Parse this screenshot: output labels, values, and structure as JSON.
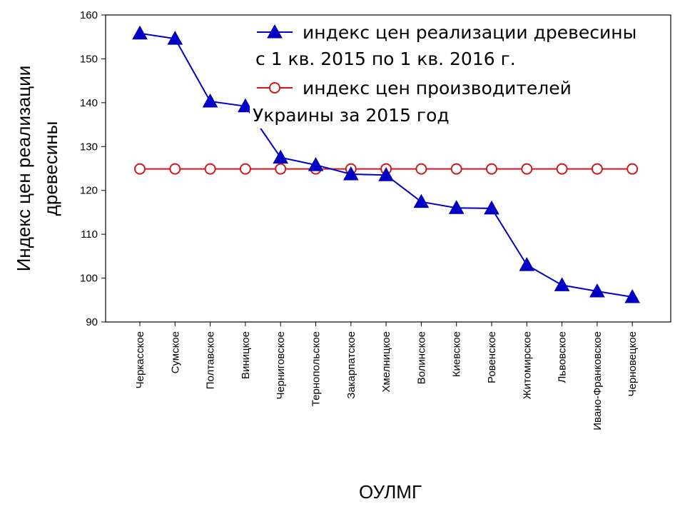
{
  "chart_data": {
    "type": "line",
    "categories": [
      "Черкасское",
      "Сумское",
      "Полтавское",
      "Виницкое",
      "Черниговское",
      "Тернопольское",
      "Закарпатское",
      "Хмелницкое",
      "Волинское",
      "Киевское",
      "Ровенское",
      "Житомирское",
      "Львовское",
      "Ивано-Франковское",
      "Черновецкое"
    ],
    "series": [
      {
        "name": "индекс цен реализации древесины",
        "name_line2": "с 1 кв. 2015 по  1 кв. 2016 г.",
        "values": [
          155.8,
          154.6,
          140.3,
          139.2,
          127.5,
          125.8,
          123.7,
          123.5,
          117.4,
          116.0,
          115.9,
          103.0,
          98.4,
          97.0,
          95.7
        ],
        "color": "#0000c8",
        "marker": "triangle"
      },
      {
        "name": "индекс цен производителей",
        "name_line2": "Украины  за 2015 год",
        "values": [
          124.9,
          124.9,
          124.9,
          124.9,
          124.9,
          124.9,
          124.9,
          124.9,
          124.9,
          124.9,
          124.9,
          124.9,
          124.9,
          124.9,
          124.9
        ],
        "color": "#d01818",
        "marker": "circle"
      }
    ],
    "xlabel": "ОУЛМГ",
    "ylabel_line1": "Индекс цен реализации",
    "ylabel_line2": "древесины",
    "ylim": [
      90,
      160
    ],
    "yticks": [
      90,
      100,
      110,
      120,
      130,
      140,
      150,
      160
    ],
    "grid": false,
    "legend_position": "top-right"
  }
}
